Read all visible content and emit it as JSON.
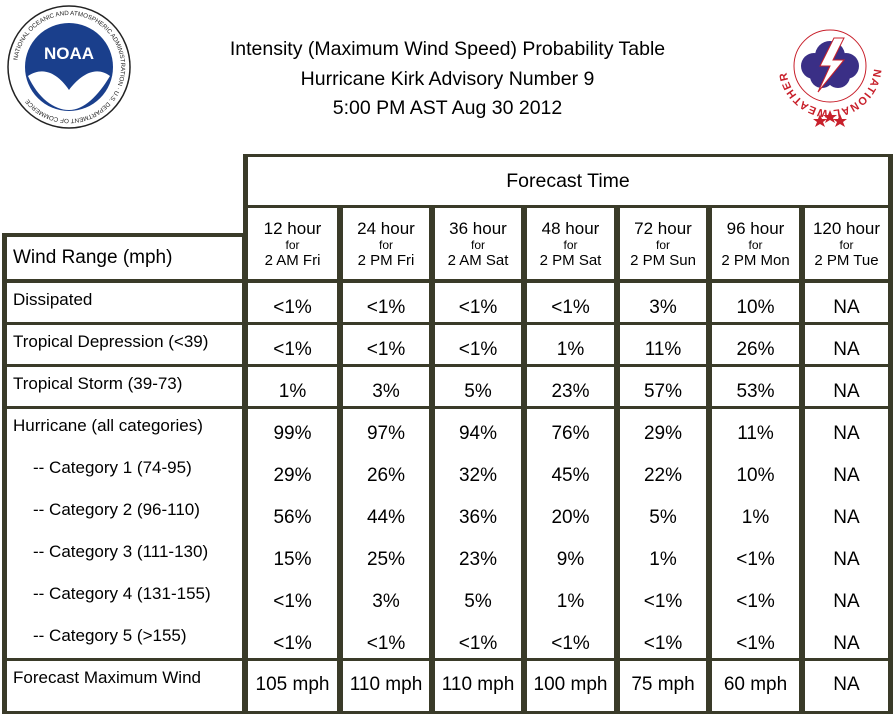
{
  "header": {
    "title_line1": "Intensity (Maximum Wind Speed) Probability Table",
    "title_line2": "Hurricane Kirk Advisory Number 9",
    "title_line3": "5:00 PM AST Aug 30 2012"
  },
  "logos": {
    "noaa_text": "NOAA",
    "noaa_ring": "NATIONAL OCEANIC AND ATMOSPHERIC ADMINISTRATION · U.S. DEPARTMENT OF COMMERCE",
    "nws_ring": "NATIONAL WEATHER SERVICE"
  },
  "table": {
    "forecast_time_label": "Forecast Time",
    "wind_range_label": "Wind Range (mph)",
    "columns": [
      {
        "hours": "12 hour",
        "for": "for",
        "time": "2 AM Fri"
      },
      {
        "hours": "24 hour",
        "for": "for",
        "time": "2 PM Fri"
      },
      {
        "hours": "36 hour",
        "for": "for",
        "time": "2 AM Sat"
      },
      {
        "hours": "48 hour",
        "for": "for",
        "time": "2 PM Sat"
      },
      {
        "hours": "72 hour",
        "for": "for",
        "time": "2 PM Sun"
      },
      {
        "hours": "96 hour",
        "for": "for",
        "time": "2 PM Mon"
      },
      {
        "hours": "120 hour",
        "for": "for",
        "time": "2 PM Tue"
      }
    ],
    "groups": [
      {
        "rows": [
          {
            "label": "Dissipated",
            "values": [
              "<1%",
              "<1%",
              "<1%",
              "<1%",
              "3%",
              "10%",
              "NA"
            ]
          }
        ]
      },
      {
        "rows": [
          {
            "label": "Tropical Depression (<39)",
            "values": [
              "<1%",
              "<1%",
              "<1%",
              "1%",
              "11%",
              "26%",
              "NA"
            ]
          }
        ]
      },
      {
        "rows": [
          {
            "label": "Tropical Storm (39-73)",
            "values": [
              "1%",
              "3%",
              "5%",
              "23%",
              "57%",
              "53%",
              "NA"
            ]
          }
        ]
      },
      {
        "rows": [
          {
            "label": "Hurricane (all categories)",
            "values": [
              "99%",
              "97%",
              "94%",
              "76%",
              "29%",
              "11%",
              "NA"
            ]
          },
          {
            "label": "-- Category 1 (74-95)",
            "values": [
              "29%",
              "26%",
              "32%",
              "45%",
              "22%",
              "10%",
              "NA"
            ]
          },
          {
            "label": "-- Category 2 (96-110)",
            "values": [
              "56%",
              "44%",
              "36%",
              "20%",
              "5%",
              "1%",
              "NA"
            ]
          },
          {
            "label": "-- Category 3 (111-130)",
            "values": [
              "15%",
              "25%",
              "23%",
              "9%",
              "1%",
              "<1%",
              "NA"
            ]
          },
          {
            "label": "-- Category 4 (131-155)",
            "values": [
              "<1%",
              "3%",
              "5%",
              "1%",
              "<1%",
              "<1%",
              "NA"
            ]
          },
          {
            "label": "-- Category 5 (>155)",
            "values": [
              "<1%",
              "<1%",
              "<1%",
              "<1%",
              "<1%",
              "<1%",
              "NA"
            ]
          }
        ]
      },
      {
        "rows": [
          {
            "label": "Forecast Maximum Wind",
            "values": [
              "105 mph",
              "110 mph",
              "110 mph",
              "100 mph",
              "75 mph",
              "60 mph",
              "NA"
            ]
          }
        ]
      }
    ]
  },
  "colors": {
    "grid": "#3a3b29",
    "noaa_blue": "#1a3f8c",
    "nws_red": "#c8202b"
  }
}
